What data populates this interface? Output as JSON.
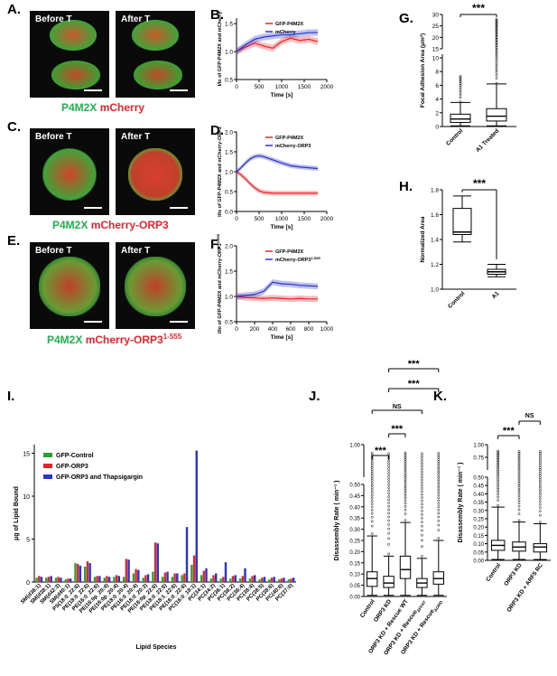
{
  "panels": {
    "A": {
      "letter": "A.",
      "before": "Before T",
      "after": "After T",
      "caption_green": "P4M2X",
      "caption_red": "mCherry"
    },
    "B": {
      "letter": "B.",
      "ylabel": "I/Io of GFP-P4M2X and mCherry",
      "xlabel": "Time [s]",
      "legend": [
        "GFP-P4M2X",
        "mCherry"
      ],
      "yticks": [
        "0.5",
        "1.0",
        "1.5"
      ],
      "xticks": [
        "0",
        "500",
        "1000",
        "1500",
        "2000"
      ]
    },
    "C": {
      "letter": "C.",
      "before": "Before T",
      "after": "After T",
      "caption_green": "P4M2X",
      "caption_red": "mCherry-ORP3"
    },
    "D": {
      "letter": "D.",
      "ylabel": "I/Io of GFP-P4M2X and mCherry-ORP3",
      "xlabel": "Time [s]",
      "legend": [
        "GFP-P4M2X",
        "mCherry-ORP3"
      ],
      "yticks": [
        "0.0",
        "0.5",
        "1.0",
        "1.5",
        "2.0"
      ],
      "xticks": [
        "0",
        "500",
        "1000",
        "1500",
        "2000"
      ]
    },
    "E": {
      "letter": "E.",
      "before": "Before T",
      "after": "After T",
      "caption_green": "P4M2X",
      "caption_red": "mCherry-ORP3",
      "caption_sup": "1-555"
    },
    "F": {
      "letter": "F.",
      "ylabel": "I/Io of GFP-P4M2X and mCherry-ORP3",
      "ylabel_sup": "1-555",
      "xlabel": "Time [s]",
      "legend": [
        "GFP-P4M2X",
        "mCherry-ORP3"
      ],
      "legend_sup": "1-555",
      "yticks": [
        "0.5",
        "1.0",
        "1.5",
        "2.0"
      ],
      "xticks": [
        "0",
        "200",
        "400",
        "600",
        "800",
        "1000"
      ]
    },
    "G": {
      "letter": "G.",
      "ylabel": "Focal Adhesion Area (μm²)",
      "stars": "***",
      "categories": [
        "Control",
        "A1 Treated"
      ],
      "yticks_top": [
        "30",
        "25",
        "20",
        "15"
      ],
      "yticks_bottom": [
        "0",
        "2",
        "4",
        "6",
        "8",
        "10"
      ]
    },
    "H": {
      "letter": "H.",
      "ylabel": "Normalized Area",
      "stars": "***",
      "categories": [
        "Control",
        "A1"
      ],
      "yticks": [
        "1.0",
        "1.2",
        "1.4",
        "1.6",
        "1.8"
      ]
    },
    "I": {
      "letter": "I.",
      "ylabel": "μg of Lipid Bound",
      "xlabel": "Lipid Species",
      "legend": [
        "GFP-Control",
        "GFP-ORP3",
        "GFP-ORP3 and Thapsigargin"
      ],
      "yticks": [
        "0",
        "5",
        "10",
        "15"
      ],
      "categories": [
        "SM(d36:1)",
        "SM(d38:1)",
        "SM(d42:3)",
        "SM(d40:1)",
        "PS(18:0_22:6)",
        "PE(18:0_22:6)",
        "PE(16:0_22:6)",
        "PE(16:0p_20:4)",
        "PE(18:0p_20:4)",
        "PE(18:0_20:4)",
        "PE(16:0_20:4)",
        "PE(18:0_20:3)",
        "PE(18:0p_22:6)",
        "PE(18:0_22:6)",
        "PE(18:1_22:6)",
        "PE(16:0_22:6)",
        "PC(16:0_18:1)",
        "PC(34:1)",
        "PC(34:2)",
        "PC(36:1)",
        "PC(36:2)",
        "PC(36:4)",
        "PC(38:4)",
        "PC(38:5)",
        "PC(38:6)",
        "PC(40:6)",
        "PC(37:0)"
      ]
    },
    "J": {
      "letter": "J.",
      "ylabel": "Disassembly Rate ( min⁻¹ )",
      "ns": "NS",
      "stars": "***",
      "categories": [
        "Control",
        "ORP3 KD",
        "ORP3 KD + Rescue WT",
        "ORP3 KD + Rescue",
        "ORP3 KD + Rescue"
      ],
      "cat_subs": [
        "",
        "",
        "",
        "ΔFFAT",
        "ΔORD"
      ],
      "yticks": [
        "0.00",
        "0.05",
        "0.10",
        "0.15",
        "0.20",
        "0.25",
        "0.30",
        "0.35",
        "0.40",
        "0.45",
        "0.50",
        "1.00"
      ]
    },
    "K": {
      "letter": "K.",
      "ylabel": "Disassembly Rate ( min⁻¹ )",
      "ns": "NS",
      "stars": "***",
      "categories": [
        "Control",
        "ORP3 KD",
        "ORP3 KD + ARF5 RC"
      ],
      "yticks": [
        "0.00",
        "0.05",
        "0.10",
        "0.15",
        "0.20",
        "0.25",
        "0.30",
        "0.35",
        "0.40",
        "0.45",
        "0.50",
        "0.75",
        "1.00"
      ]
    }
  },
  "chart_data": [
    {
      "panel": "B",
      "type": "line",
      "series": [
        {
          "name": "GFP-P4M2X",
          "color": "#e8242b",
          "x": [
            0,
            200,
            400,
            600,
            800,
            1000,
            1200,
            1400,
            1600,
            1800
          ],
          "y": [
            1.0,
            1.08,
            1.15,
            1.1,
            1.06,
            1.18,
            1.24,
            1.2,
            1.22,
            1.18
          ]
        },
        {
          "name": "mCherry",
          "color": "#2a34c8",
          "x": [
            0,
            200,
            400,
            600,
            800,
            1000,
            1200,
            1400,
            1600,
            1800
          ],
          "y": [
            1.0,
            1.12,
            1.22,
            1.26,
            1.28,
            1.3,
            1.3,
            1.32,
            1.34,
            1.34
          ]
        }
      ],
      "xlim": [
        0,
        2000
      ],
      "ylim": [
        0.5,
        1.6
      ]
    },
    {
      "panel": "D",
      "type": "line",
      "series": [
        {
          "name": "GFP-P4M2X",
          "color": "#e8242b",
          "x": [
            0,
            100,
            200,
            300,
            400,
            500,
            600,
            800,
            1000,
            1200,
            1400,
            1600,
            1800
          ],
          "y": [
            1.0,
            0.92,
            0.82,
            0.7,
            0.6,
            0.52,
            0.48,
            0.46,
            0.46,
            0.46,
            0.46,
            0.46,
            0.46
          ]
        },
        {
          "name": "mCherry-ORP3",
          "color": "#2a34c8",
          "x": [
            0,
            100,
            200,
            300,
            400,
            500,
            600,
            800,
            1000,
            1200,
            1400,
            1600,
            1800
          ],
          "y": [
            1.0,
            1.1,
            1.22,
            1.32,
            1.38,
            1.4,
            1.38,
            1.3,
            1.22,
            1.15,
            1.12,
            1.1,
            1.08
          ]
        }
      ],
      "xlim": [
        0,
        2000
      ],
      "ylim": [
        0.0,
        2.0
      ]
    },
    {
      "panel": "F",
      "type": "line",
      "series": [
        {
          "name": "GFP-P4M2X",
          "color": "#e8242b",
          "x": [
            0,
            100,
            200,
            300,
            400,
            500,
            600,
            700,
            800,
            900
          ],
          "y": [
            1.0,
            0.98,
            0.97,
            0.96,
            0.97,
            0.96,
            0.95,
            0.96,
            0.95,
            0.95
          ]
        },
        {
          "name": "mCherry-ORP3",
          "color": "#2a34c8",
          "x": [
            0,
            100,
            200,
            300,
            400,
            500,
            600,
            700,
            800,
            900
          ],
          "y": [
            1.0,
            1.02,
            1.04,
            1.1,
            1.28,
            1.25,
            1.24,
            1.22,
            1.21,
            1.2
          ]
        }
      ],
      "xlim": [
        0,
        1000
      ],
      "ylim": [
        0.5,
        2.0
      ]
    },
    {
      "panel": "G",
      "type": "box",
      "categories": [
        "Control",
        "A1 Treated"
      ],
      "boxes": [
        {
          "min": 0.1,
          "q1": 0.6,
          "median": 1.1,
          "q3": 1.8,
          "max": 3.5
        },
        {
          "min": 0.1,
          "q1": 0.8,
          "median": 1.5,
          "q3": 2.6,
          "max": 6.2
        }
      ]
    },
    {
      "panel": "H",
      "type": "box",
      "categories": [
        "Control",
        "A1"
      ],
      "boxes": [
        {
          "min": 1.38,
          "q1": 1.44,
          "median": 1.46,
          "q3": 1.65,
          "max": 1.75
        },
        {
          "min": 1.1,
          "q1": 1.12,
          "median": 1.14,
          "q3": 1.16,
          "max": 1.2
        }
      ],
      "ylim": [
        1.0,
        1.8
      ]
    },
    {
      "panel": "I",
      "type": "bar",
      "series": [
        {
          "name": "GFP-Control",
          "color": "#2ca02c",
          "values": [
            0.5,
            0.5,
            0.5,
            0.3,
            2.2,
            1.8,
            0.6,
            0.5,
            0.6,
            0.6,
            1.0,
            0.5,
            1.2,
            0.6,
            0.6,
            0.8,
            2.0,
            0.8,
            0.4,
            0.4,
            0.4,
            0.4,
            0.4,
            0.3,
            0.3,
            0.3,
            0.3
          ]
        },
        {
          "name": "GFP-ORP3",
          "color": "#e8242b",
          "values": [
            0.7,
            0.6,
            0.6,
            0.4,
            2.1,
            2.4,
            0.7,
            0.7,
            0.8,
            2.7,
            1.5,
            0.8,
            4.6,
            1.1,
            1.0,
            1.0,
            3.1,
            1.3,
            0.8,
            0.6,
            0.7,
            0.7,
            0.7,
            0.5,
            0.5,
            0.4,
            0.4
          ]
        },
        {
          "name": "GFP-ORP3 and Thapsigargin",
          "color": "#2a34c8",
          "values": [
            0.6,
            0.7,
            0.5,
            0.4,
            1.9,
            2.2,
            0.7,
            0.6,
            0.7,
            2.6,
            1.4,
            0.9,
            4.5,
            1.2,
            1.0,
            6.4,
            15.3,
            1.6,
            1.0,
            2.3,
            0.8,
            1.6,
            0.8,
            0.6,
            0.6,
            0.5,
            0.5
          ]
        }
      ],
      "ylim": [
        0,
        16
      ]
    },
    {
      "panel": "J",
      "type": "box",
      "boxes": [
        {
          "min": 0.005,
          "q1": 0.045,
          "median": 0.08,
          "q3": 0.11,
          "max": 0.27
        },
        {
          "min": 0.005,
          "q1": 0.04,
          "median": 0.06,
          "q3": 0.09,
          "max": 0.18
        },
        {
          "min": 0.005,
          "q1": 0.08,
          "median": 0.12,
          "q3": 0.18,
          "max": 0.33
        },
        {
          "min": 0.005,
          "q1": 0.04,
          "median": 0.06,
          "q3": 0.08,
          "max": 0.17
        },
        {
          "min": 0.005,
          "q1": 0.055,
          "median": 0.08,
          "q3": 0.11,
          "max": 0.25
        }
      ]
    },
    {
      "panel": "K",
      "type": "box",
      "boxes": [
        {
          "min": 0.005,
          "q1": 0.06,
          "median": 0.09,
          "q3": 0.12,
          "max": 0.32
        },
        {
          "min": 0.005,
          "q1": 0.055,
          "median": 0.08,
          "q3": 0.11,
          "max": 0.23
        },
        {
          "min": 0.005,
          "q1": 0.05,
          "median": 0.08,
          "q3": 0.1,
          "max": 0.22
        }
      ]
    }
  ]
}
